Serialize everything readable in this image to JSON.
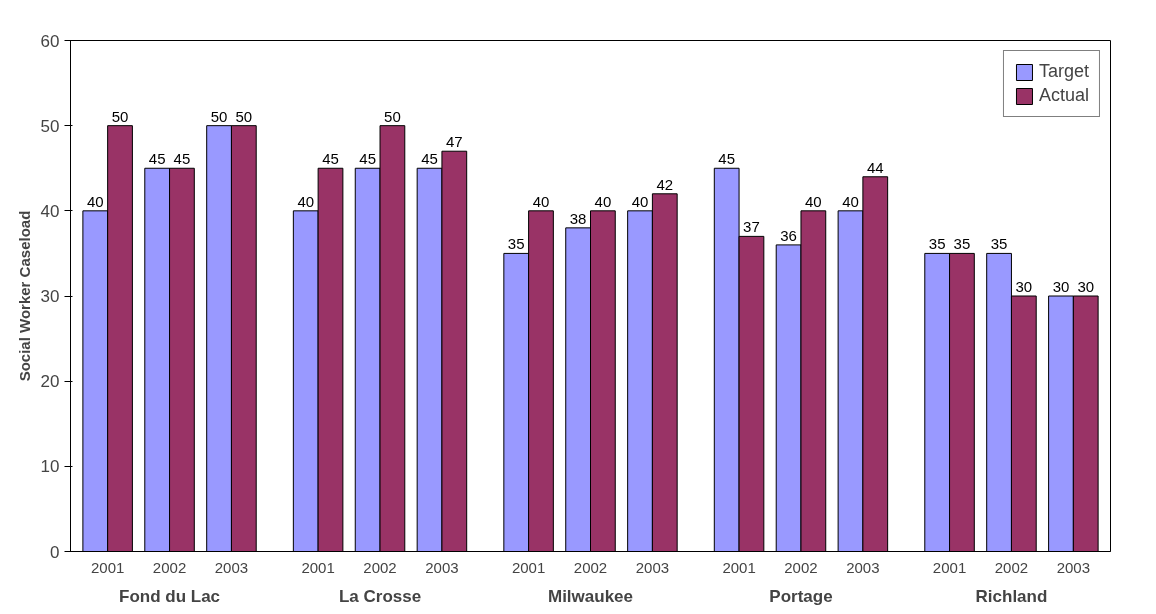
{
  "chart_data": {
    "type": "bar",
    "ylabel": "Social Worker Caseload",
    "categories": [
      "2001",
      "2002",
      "2003",
      "2001",
      "2002",
      "2003",
      "2001",
      "2002",
      "2003",
      "2001",
      "2002",
      "2003",
      "2001",
      "2002",
      "2003"
    ],
    "series": [
      {
        "name": "Target",
        "color": "#9999ff",
        "values": [
          40,
          45,
          50,
          40,
          45,
          45,
          35,
          38,
          40,
          45,
          36,
          40,
          35,
          35,
          30
        ]
      },
      {
        "name": "Actual",
        "color": "#993366",
        "values": [
          50,
          45,
          50,
          45,
          50,
          47,
          40,
          40,
          42,
          37,
          40,
          44,
          35,
          30,
          30
        ]
      }
    ],
    "annotations": [
      "Fond du Lac",
      "La Crosse",
      "Milwaukee",
      "Portage",
      "Richland"
    ],
    "ylim": [
      0,
      60
    ],
    "yticks": [
      0,
      10,
      20,
      30,
      40,
      50,
      60
    ],
    "data_labels": true,
    "grid": false,
    "legend": "top right"
  }
}
